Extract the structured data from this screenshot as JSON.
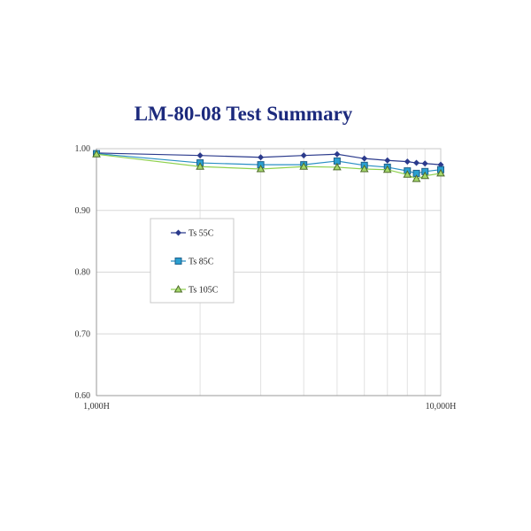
{
  "chart_data": {
    "type": "line",
    "title": "LM-80-08 Test Summary",
    "xlabel": "",
    "ylabel": "",
    "x_scale": "log",
    "xlim": [
      1000,
      10000
    ],
    "ylim": [
      0.6,
      1.0
    ],
    "x_tick_labels": [
      "1,000H",
      "10,000H"
    ],
    "y_ticks": [
      0.6,
      0.7,
      0.8,
      0.9,
      1.0
    ],
    "y_tick_labels": [
      "0.60",
      "0.70",
      "0.80",
      "0.90",
      "1.00"
    ],
    "grid": {
      "vertical": true,
      "horizontal": true
    },
    "legend_position": "inside-left",
    "x": [
      1000,
      2000,
      3000,
      4000,
      5000,
      6000,
      7000,
      8000,
      8500,
      9000,
      10000
    ],
    "series": [
      {
        "name": "Ts 55C",
        "color": "#2b3a8c",
        "marker": "diamond",
        "values": [
          0.993,
          0.989,
          0.986,
          0.989,
          0.991,
          0.984,
          0.981,
          0.979,
          0.977,
          0.976,
          0.974
        ]
      },
      {
        "name": "Ts 85C",
        "color": "#2a8fc4",
        "marker": "square",
        "values": [
          0.992,
          0.977,
          0.974,
          0.974,
          0.98,
          0.973,
          0.97,
          0.964,
          0.96,
          0.963,
          0.966
        ]
      },
      {
        "name": "Ts 105C",
        "color": "#8fd14f",
        "marker": "triangle",
        "values": [
          0.991,
          0.971,
          0.967,
          0.971,
          0.97,
          0.967,
          0.966,
          0.958,
          0.951,
          0.956,
          0.96
        ]
      }
    ]
  }
}
